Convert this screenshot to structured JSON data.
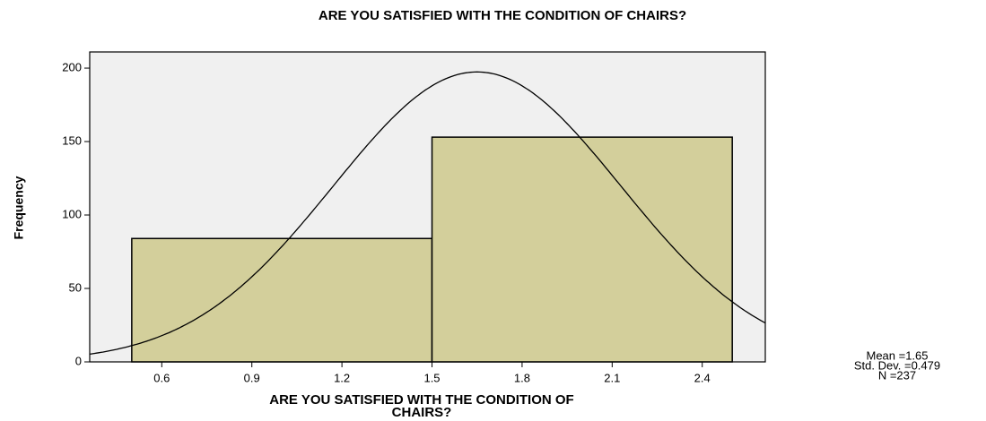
{
  "chart_data": {
    "type": "histogram",
    "title": "ARE YOU SATISFIED WITH THE CONDITION OF CHAIRS?",
    "x_label": [
      "ARE YOU SATISFIED WITH THE CONDITION OF",
      "CHAIRS?"
    ],
    "y_label": "Frequency",
    "bins": [
      0.5,
      1.5,
      2.5
    ],
    "values": [
      84,
      153
    ],
    "color": "#d3cf9b",
    "background": "#f0f0f0",
    "xlim": [
      0.36,
      2.61
    ],
    "xticks": [
      0.6,
      0.9,
      1.2,
      1.5,
      1.8,
      2.1,
      2.4
    ],
    "ylim": [
      0,
      211
    ],
    "yticks": [
      0,
      50,
      100,
      150,
      200
    ],
    "normal_curve": true,
    "stats": {
      "mean": {
        "value": 1.65,
        "label": "Mean =1.65"
      },
      "sd": {
        "value": 0.479,
        "label": "Std. Dev. =0.479"
      },
      "n": {
        "value": 237,
        "label": "N =237"
      }
    }
  }
}
